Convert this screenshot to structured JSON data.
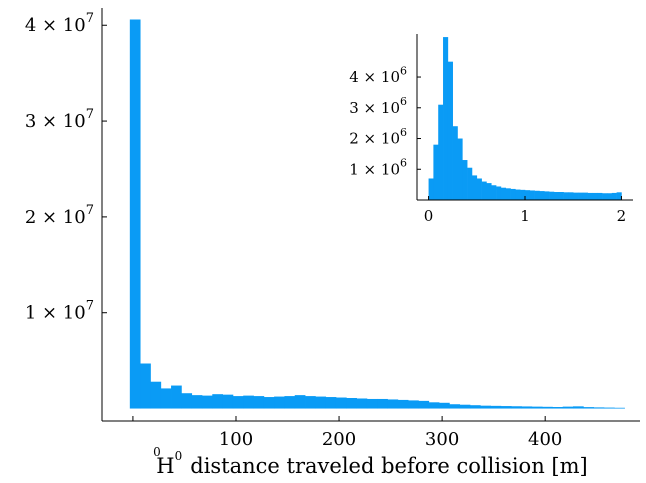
{
  "chart_data": [
    {
      "type": "bar",
      "role": "main-histogram",
      "bar_color": "#0a9bf5",
      "xlabel_prefix": "H",
      "xlabel_superscript": "0",
      "xlabel_text": "distance traveled before collision [m]",
      "xlim": [
        -30,
        492
      ],
      "ylim": [
        -1300000,
        41800000
      ],
      "x_ticks": [
        {
          "value": 0,
          "label": "0"
        },
        {
          "value": 100,
          "label": "100"
        },
        {
          "value": 200,
          "label": "200"
        },
        {
          "value": 300,
          "label": "300"
        },
        {
          "value": 400,
          "label": "400"
        }
      ],
      "y_ticks": [
        {
          "value": 10000000,
          "base": "1 × 10",
          "exp": "7"
        },
        {
          "value": 20000000,
          "base": "2 × 10",
          "exp": "7"
        },
        {
          "value": 30000000,
          "base": "3 × 10",
          "exp": "7"
        },
        {
          "value": 40000000,
          "base": "4 × 10",
          "exp": "7"
        }
      ],
      "bin_edges": [
        -3,
        7,
        17,
        27,
        37,
        47,
        57,
        67,
        77,
        87,
        97,
        107,
        117,
        127,
        137,
        147,
        157,
        167,
        177,
        187,
        197,
        207,
        217,
        227,
        237,
        247,
        257,
        267,
        277,
        287,
        297,
        307,
        317,
        327,
        337,
        347,
        357,
        367,
        377,
        387,
        397,
        407,
        417,
        427,
        437,
        447,
        457,
        467,
        477
      ],
      "values": [
        40600000,
        4700000,
        2800000,
        2100000,
        2400000,
        1600000,
        1400000,
        1350000,
        1500000,
        1450000,
        1300000,
        1350000,
        1300000,
        1200000,
        1250000,
        1300000,
        1400000,
        1300000,
        1250000,
        1200000,
        1150000,
        1100000,
        1050000,
        1000000,
        1000000,
        950000,
        900000,
        850000,
        800000,
        650000,
        600000,
        450000,
        400000,
        350000,
        300000,
        280000,
        260000,
        240000,
        220000,
        200000,
        180000,
        160000,
        200000,
        230000,
        150000,
        120000,
        100000,
        80000
      ]
    },
    {
      "type": "bar",
      "role": "inset-histogram",
      "bar_color": "#0a9bf5",
      "xlim": [
        -0.12,
        2.12
      ],
      "ylim": [
        0,
        5400000
      ],
      "x_ticks": [
        {
          "value": 0,
          "label": "0"
        },
        {
          "value": 1,
          "label": "1"
        },
        {
          "value": 2,
          "label": "2"
        }
      ],
      "y_ticks": [
        {
          "value": 1000000,
          "base": "1 × 10",
          "exp": "6"
        },
        {
          "value": 2000000,
          "base": "2 × 10",
          "exp": "6"
        },
        {
          "value": 3000000,
          "base": "3 × 10",
          "exp": "6"
        },
        {
          "value": 4000000,
          "base": "4 × 10",
          "exp": "6"
        }
      ],
      "bin_width": 0.05,
      "bin_start": 0,
      "values": [
        700000,
        1800000,
        3100000,
        5300000,
        4500000,
        2400000,
        2000000,
        1300000,
        1050000,
        800000,
        700000,
        600000,
        550000,
        480000,
        440000,
        400000,
        380000,
        360000,
        340000,
        330000,
        320000,
        310000,
        300000,
        290000,
        280000,
        270000,
        260000,
        260000,
        250000,
        250000,
        240000,
        240000,
        240000,
        230000,
        230000,
        230000,
        220000,
        220000,
        230000,
        250000
      ]
    }
  ]
}
